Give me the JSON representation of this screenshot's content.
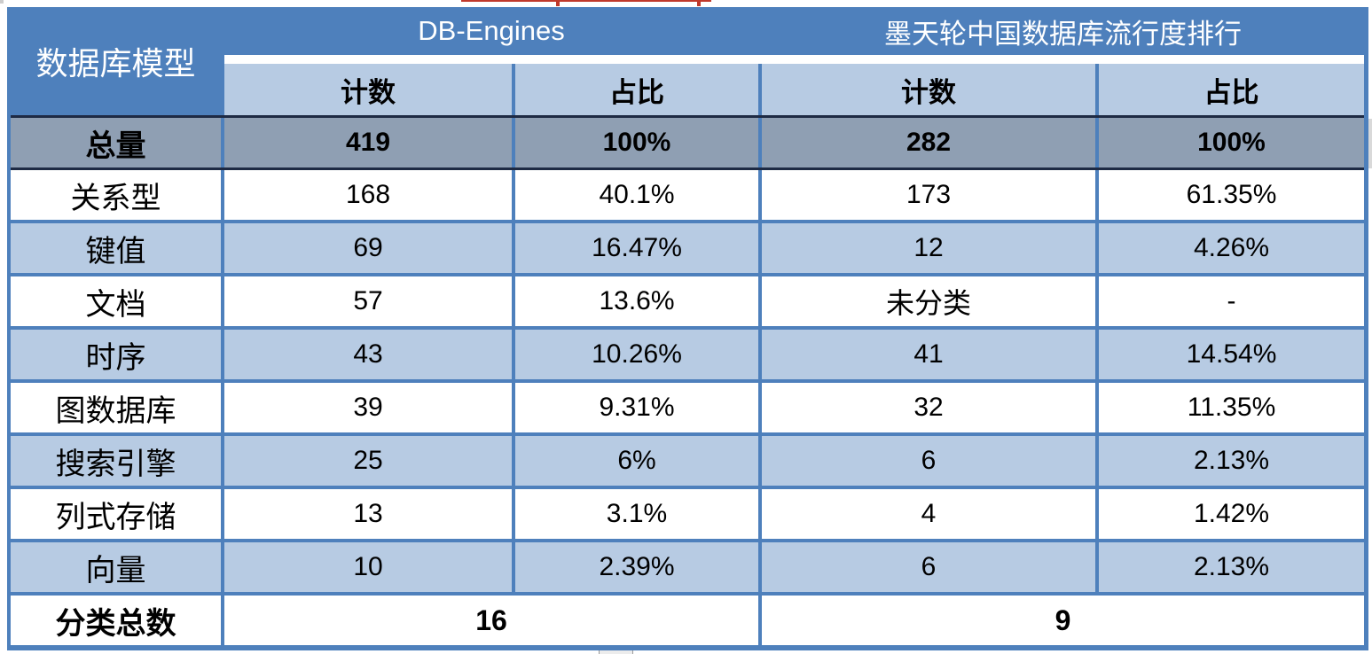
{
  "table": {
    "corner_header": "数据库模型",
    "groups": [
      {
        "label": "DB-Engines"
      },
      {
        "label": "墨天轮中国数据库流行度排行"
      }
    ],
    "subheaders": [
      "计数",
      "占比",
      "计数",
      "占比"
    ],
    "rows": [
      {
        "label": "总量",
        "cells": [
          "419",
          "100%",
          "282",
          "100%"
        ]
      },
      {
        "label": "关系型",
        "cells": [
          "168",
          "40.1%",
          "173",
          "61.35%"
        ]
      },
      {
        "label": "键值",
        "cells": [
          "69",
          "16.47%",
          "12",
          "4.26%"
        ]
      },
      {
        "label": "文档",
        "cells": [
          "57",
          "13.6%",
          "未分类",
          "-"
        ]
      },
      {
        "label": "时序",
        "cells": [
          "43",
          "10.26%",
          "41",
          "14.54%"
        ]
      },
      {
        "label": "图数据库",
        "cells": [
          "39",
          "9.31%",
          "32",
          "11.35%"
        ]
      },
      {
        "label": "搜索引擎",
        "cells": [
          "25",
          "6%",
          "6",
          "2.13%"
        ]
      },
      {
        "label": "列式存储",
        "cells": [
          "13",
          "3.1%",
          "4",
          "1.42%"
        ]
      },
      {
        "label": "向量",
        "cells": [
          "10",
          "2.39%",
          "6",
          "2.13%"
        ]
      }
    ],
    "footer": {
      "label": "分类总数",
      "values": [
        "16",
        "9"
      ]
    }
  },
  "colors": {
    "header_blue": "#4E80BC",
    "band_light_blue": "#B7CBE3",
    "total_row_gray": "#8F9FB3",
    "dark_separator": "#1E2A44",
    "header_text": "#FFFFFF",
    "body_text": "#000000",
    "artifact_red": "#C0392B"
  }
}
